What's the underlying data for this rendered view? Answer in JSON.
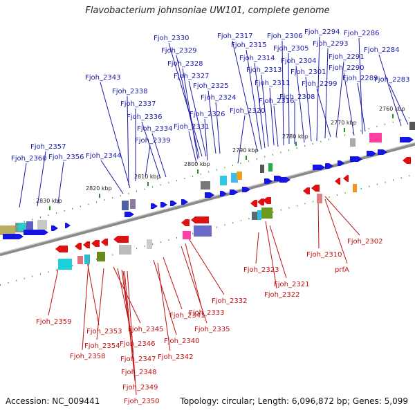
{
  "title": "Flavobacterium johnsoniae UW101, complete genome",
  "footer": {
    "accession": "Accession: NC_009441",
    "summary": "Topology: circular; Length: 6,096,872 bp; Genes: 5,099"
  },
  "colors": {
    "forward": "#1a1aa8",
    "reverse": "#c01010",
    "backbone": "#888888",
    "ticks": "#2a8a2a"
  },
  "position_ticks": [
    "2760 kbp",
    "2770 kbp",
    "2780 kbp",
    "2790 kbp",
    "2800 kbp",
    "2810 kbp",
    "2820 kbp",
    "2830 kbp"
  ],
  "forward_genes": [
    "Fjoh_2330",
    "Fjoh_2317",
    "Fjoh_2306",
    "Fjoh_2294",
    "Fjoh_2286",
    "Fjoh_2329",
    "Fjoh_2315",
    "Fjoh_2305",
    "Fjoh_2293",
    "Fjoh_2284",
    "Fjoh_2328",
    "Fjoh_2314",
    "Fjoh_2304",
    "Fjoh_2291",
    "Fjoh_2283",
    "Fjoh_2327",
    "Fjoh_2313",
    "Fjoh_2301",
    "Fjoh_2290",
    "Fjoh_2343",
    "Fjoh_2325",
    "Fjoh_2311",
    "Fjoh_2299",
    "Fjoh_2289",
    "Fjoh_2338",
    "Fjoh_2324",
    "Fjoh_2308",
    "Fjoh_2337",
    "Fjoh_2316",
    "Fjoh_2336",
    "Fjoh_2326",
    "Fjoh_2320",
    "Fjoh_2334",
    "Fjoh_2331",
    "Fjoh_2339",
    "Fjoh_2357",
    "Fjoh_2344",
    "Fjoh_2360",
    "Fjoh_2356"
  ],
  "reverse_genes": [
    "Fjoh_2302",
    "Fjoh_2310",
    "prfA",
    "Fjoh_2323",
    "Fjoh_2321",
    "Fjoh_2322",
    "Fjoh_2332",
    "Fjoh_2359",
    "Fjoh_2341",
    "Fjoh_2333",
    "Fjoh_2353",
    "Fjoh_2345",
    "Fjoh_2335",
    "Fjoh_2354",
    "Fjoh_2346",
    "Fjoh_2340",
    "Fjoh_2358",
    "Fjoh_2347",
    "Fjoh_2342",
    "Fjoh_2348",
    "Fjoh_2349",
    "Fjoh_2350"
  ]
}
